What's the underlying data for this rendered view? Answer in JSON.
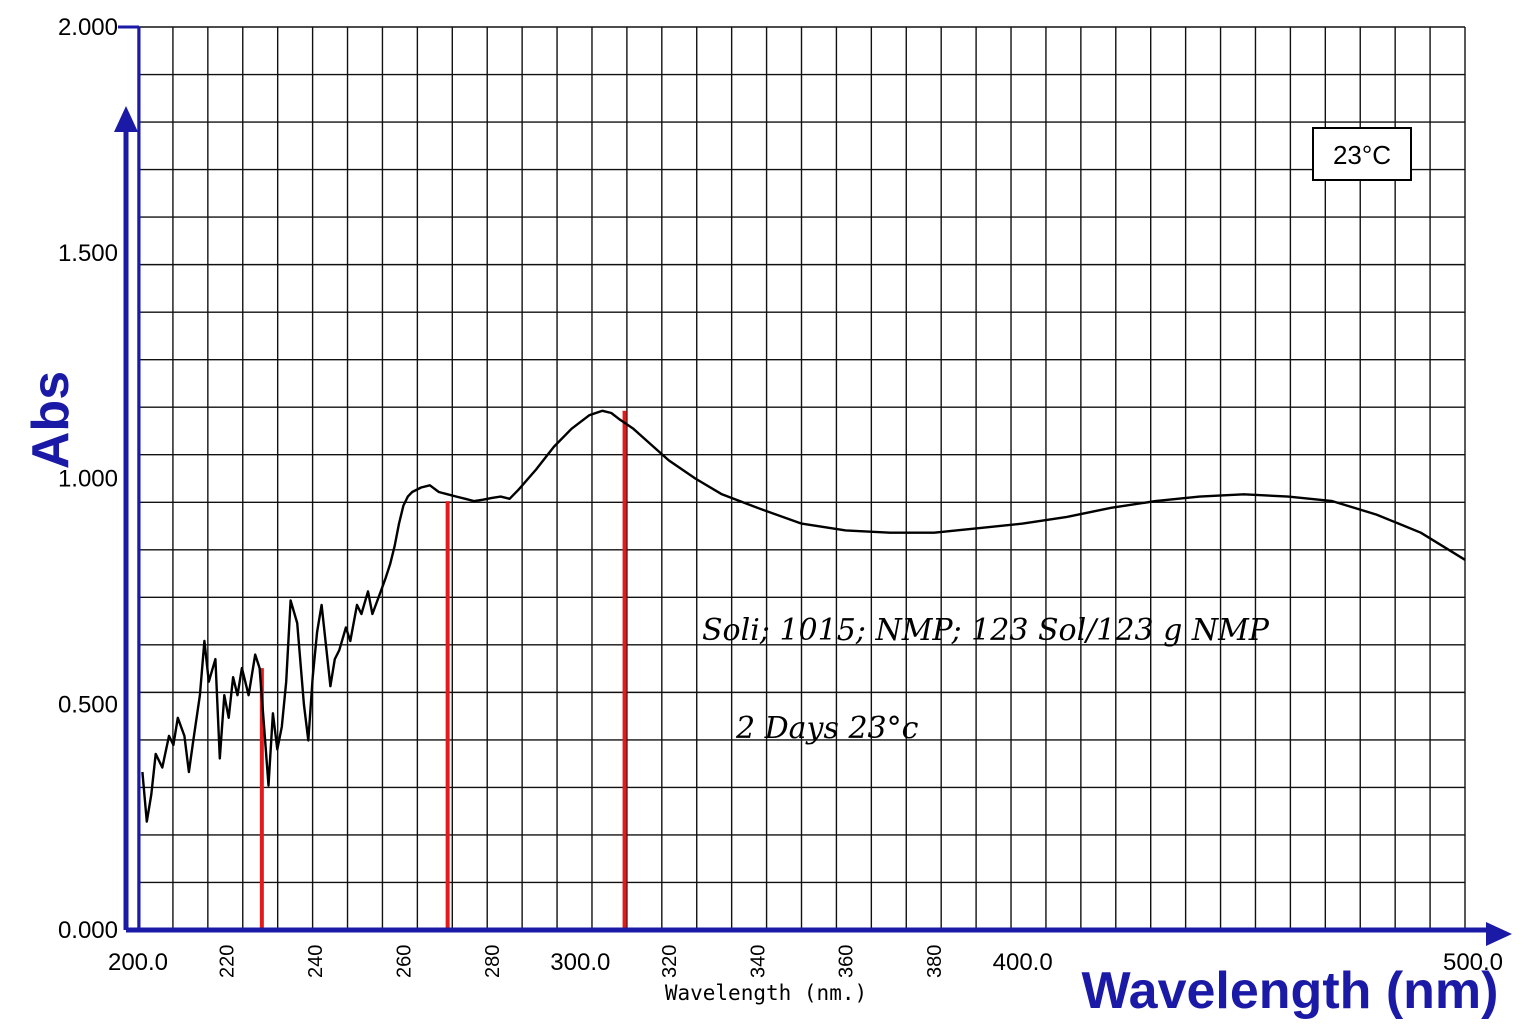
{
  "chart_data": {
    "type": "line",
    "ylabel": "Abs",
    "xlabel": "Wavelength (nm)",
    "xlabel_secondary": "Wavelength (nm.)",
    "xlim": [
      200.0,
      500.0
    ],
    "ylim": [
      0.0,
      2.0
    ],
    "x_major_ticks": [
      "200.0",
      "300.0",
      "400.0",
      "500.0"
    ],
    "x_minor_ticks": [
      "220",
      "240",
      "260",
      "280",
      "320",
      "340",
      "360",
      "380"
    ],
    "y_ticks": [
      "0.000",
      "0.500",
      "1.000",
      "1.500",
      "2.000"
    ],
    "grid": true,
    "temperature_box": "23°C",
    "annotation_lines": [
      "Soli; 1015; NMP; 123 Sol/123 g NMP",
      "2 Days 23°c"
    ],
    "series": [
      {
        "x": [
          201.0,
          202.0,
          203.0,
          204.0,
          205.5,
          207.0,
          208.0,
          209.0,
          210.5,
          211.5,
          212.5,
          214.0,
          215.0,
          216.0,
          217.5,
          218.5,
          219.5,
          220.5,
          221.5,
          222.5,
          223.5,
          225.0,
          226.5,
          227.5,
          228.5,
          229.5,
          230.5,
          231.5,
          232.5,
          233.5,
          234.5,
          236.0,
          237.5,
          238.5,
          239.5,
          240.5,
          241.5,
          242.5,
          243.5,
          244.5,
          245.5,
          247.0,
          248.0,
          249.5,
          250.5,
          252.0,
          253.0,
          254.5,
          256.0,
          257.0,
          258.0,
          259.0,
          260.0,
          261.0,
          262.0,
          264.0,
          266.0,
          268.0,
          270.0,
          272.0,
          274.0,
          276.0,
          278.0,
          280.0,
          282.0,
          284.0,
          286.0,
          290.0,
          294.0,
          298.0,
          302.0,
          305.0,
          307.0,
          309.0,
          312.0,
          316.0,
          320.0,
          326.0,
          332.0,
          340.0,
          350.0,
          360.0,
          370.0,
          380.0,
          390.0,
          400.0,
          410.0,
          420.0,
          430.0,
          440.0,
          450.0,
          460.0,
          470.0,
          480.0,
          490.0,
          500.0
        ],
        "y": [
          0.35,
          0.24,
          0.3,
          0.39,
          0.36,
          0.43,
          0.41,
          0.47,
          0.43,
          0.35,
          0.42,
          0.52,
          0.64,
          0.55,
          0.6,
          0.38,
          0.52,
          0.47,
          0.56,
          0.52,
          0.58,
          0.52,
          0.61,
          0.58,
          0.45,
          0.32,
          0.48,
          0.4,
          0.45,
          0.55,
          0.73,
          0.68,
          0.5,
          0.42,
          0.56,
          0.66,
          0.72,
          0.63,
          0.54,
          0.6,
          0.62,
          0.67,
          0.64,
          0.72,
          0.7,
          0.75,
          0.7,
          0.74,
          0.78,
          0.81,
          0.85,
          0.9,
          0.94,
          0.96,
          0.97,
          0.98,
          0.985,
          0.97,
          0.965,
          0.96,
          0.955,
          0.95,
          0.953,
          0.957,
          0.96,
          0.955,
          0.975,
          1.02,
          1.07,
          1.11,
          1.14,
          1.15,
          1.145,
          1.13,
          1.11,
          1.075,
          1.04,
          1.0,
          0.965,
          0.935,
          0.9,
          0.885,
          0.88,
          0.88,
          0.89,
          0.9,
          0.915,
          0.935,
          0.95,
          0.96,
          0.965,
          0.96,
          0.95,
          0.92,
          0.88,
          0.82
        ]
      }
    ],
    "marker_lines": [
      {
        "x": 228.0,
        "y": 0.58
      },
      {
        "x": 270.0,
        "y": 0.95
      },
      {
        "x": 310.0,
        "y": 1.15
      }
    ]
  }
}
